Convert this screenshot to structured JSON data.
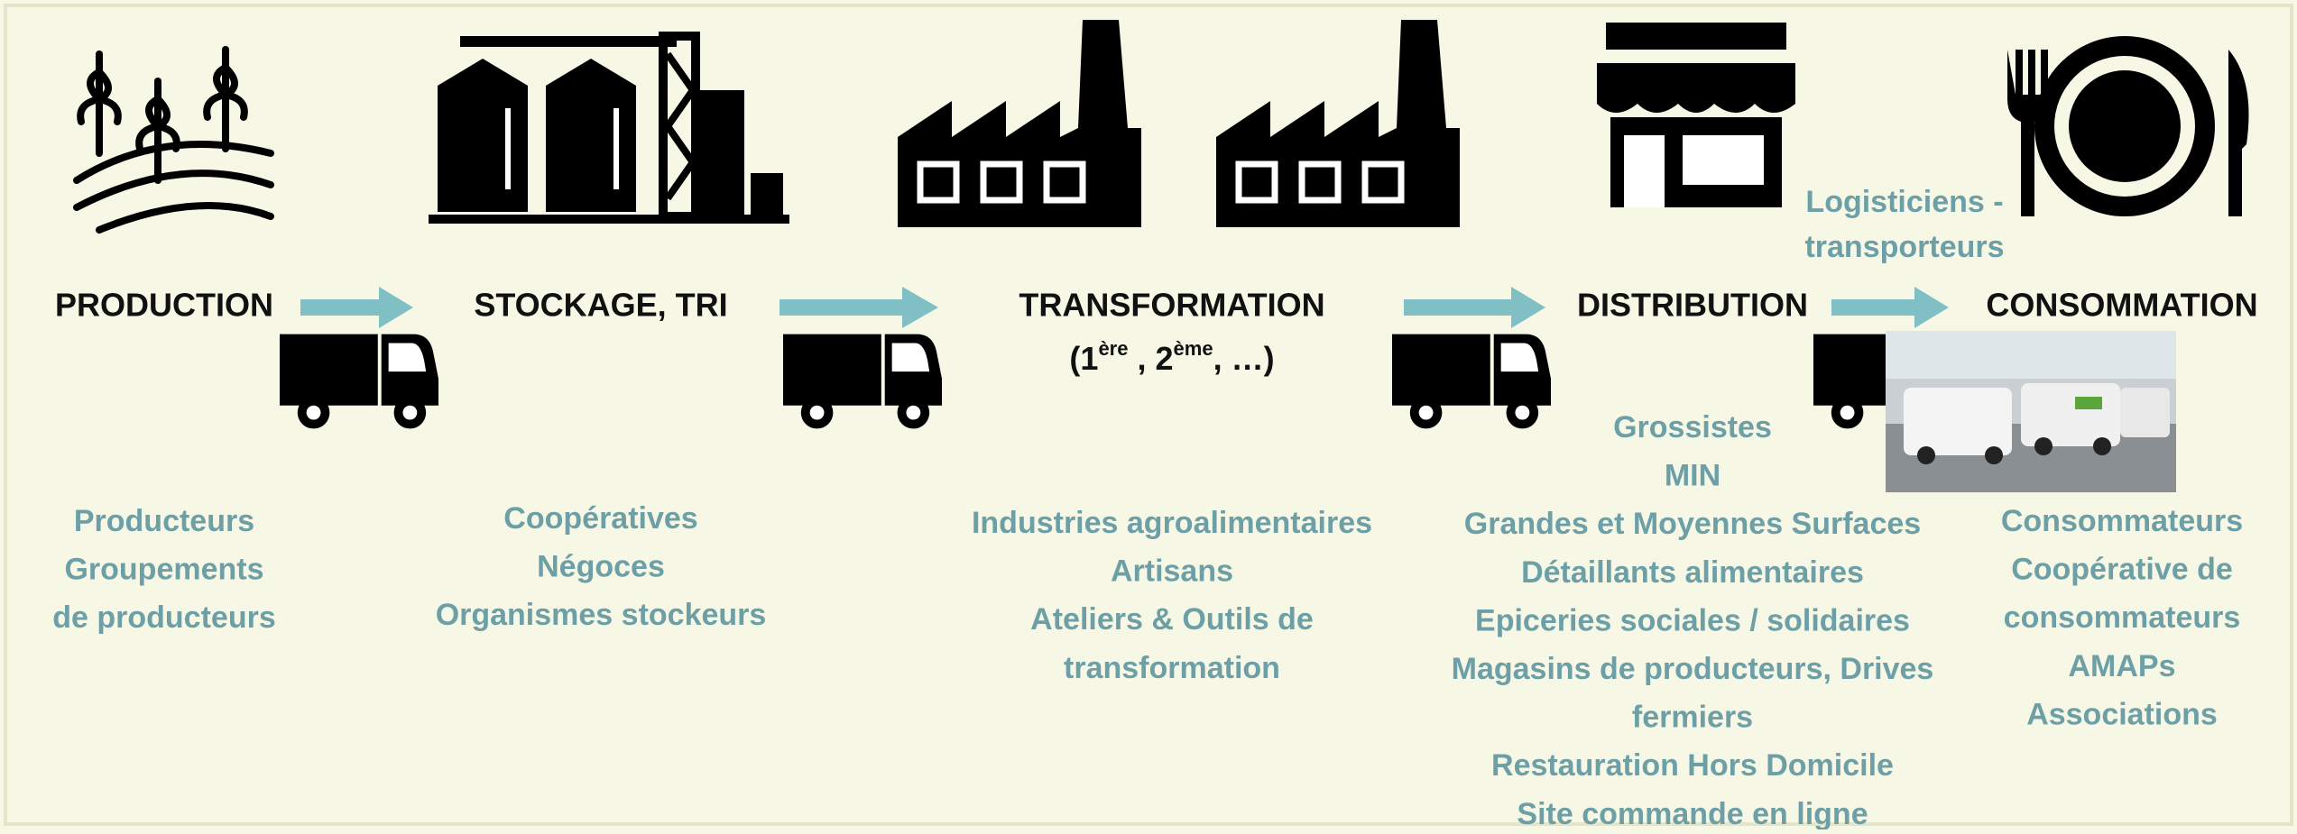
{
  "stages": [
    {
      "label": "PRODUCTION",
      "actors": [
        "Producteurs",
        "Groupements",
        "de producteurs"
      ]
    },
    {
      "label": "STOCKAGE, TRI",
      "actors": [
        "Coopératives",
        "Négoces",
        "Organismes stockeurs"
      ]
    },
    {
      "label": "TRANSFORMATION",
      "sublabel": [
        "(1",
        "ère",
        " , 2",
        "ème",
        ", …)"
      ],
      "actors": [
        "Industries agroalimentaires",
        "Artisans",
        "Ateliers & Outils de",
        "transformation"
      ]
    },
    {
      "label": "DISTRIBUTION",
      "actors": [
        "Grossistes",
        "MIN",
        "Grandes et Moyennes Surfaces",
        "Détaillants alimentaires",
        "Epiceries sociales / solidaires",
        "Magasins de producteurs, Drives",
        "fermiers",
        "Restauration Hors Domicile",
        "Site commande en ligne"
      ]
    },
    {
      "label": "CONSOMMATION",
      "actors": [
        "Consommateurs",
        "Coopérative de",
        "consommateurs",
        "AMAPs",
        "Associations"
      ]
    }
  ],
  "logistics": [
    "Logisticiens -",
    "transporteurs"
  ]
}
